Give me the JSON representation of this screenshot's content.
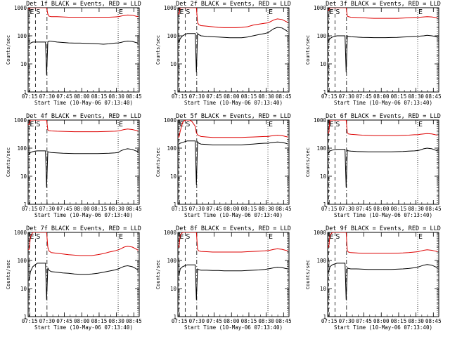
{
  "chart_data": {
    "type": "line",
    "layout": "3x3 grid",
    "y_scale": "log",
    "ylim": [
      1,
      1000
    ],
    "yticks": [
      1,
      10,
      100,
      1000
    ],
    "ytick_labels": [
      "1",
      "10",
      "100",
      "1000"
    ],
    "ylabel": "Counts/sec",
    "xlabel": "Start Time (10-May-06 07:13:40)",
    "xlim_minutes": [
      0,
      96
    ],
    "xticks_minutes": [
      1.33,
      16.33,
      31.33,
      46.33,
      61.33,
      76.33,
      91.33
    ],
    "xtick_labels": [
      "07:15",
      "07:30",
      "07:45",
      "08:00",
      "08:15",
      "08:30",
      "08:45"
    ],
    "markers": [
      {
        "label": "E",
        "minute": 0.8,
        "style": "dashed"
      },
      {
        "label": "S",
        "minute": 6.3,
        "style": "dashed"
      },
      {
        "label": "",
        "minute": 16.3,
        "style": "dashdot"
      },
      {
        "label": "E",
        "minute": 77.8,
        "style": "dotted"
      },
      {
        "label": "",
        "minute": 94.8,
        "style": "dotted"
      }
    ],
    "series_legend": {
      "events": "BLACK = Events",
      "lld": "RED = LLD"
    },
    "series_colors": {
      "events": "#000000",
      "lld": "#dd0000"
    },
    "sample_minutes": [
      0,
      1,
      2,
      4,
      6,
      8,
      10,
      12,
      15,
      16,
      17,
      18,
      20,
      25,
      30,
      35,
      40,
      45,
      50,
      55,
      60,
      65,
      70,
      75,
      78,
      80,
      83,
      86,
      90,
      93,
      95
    ],
    "panels": [
      {
        "title": "Det 1f  BLACK = Events, RED = LLD",
        "events": [
          50,
          50,
          55,
          60,
          60,
          60,
          60,
          60,
          60,
          4,
          60,
          65,
          64,
          60,
          58,
          56,
          55,
          55,
          54,
          53,
          52,
          50,
          52,
          55,
          56,
          58,
          62,
          65,
          63,
          58,
          55
        ],
        "lld": [
          900,
          900,
          1000,
          1000,
          1000,
          1000,
          1000,
          1000,
          1000,
          1000,
          600,
          500,
          480,
          480,
          470,
          460,
          460,
          460,
          460,
          460,
          460,
          460,
          460,
          470,
          480,
          500,
          530,
          550,
          540,
          500,
          480
        ]
      },
      {
        "title": "Det 2f  BLACK = Events, RED = LLD",
        "events": [
          60,
          60,
          80,
          100,
          110,
          120,
          120,
          120,
          120,
          5,
          120,
          110,
          100,
          95,
          92,
          90,
          88,
          85,
          85,
          85,
          90,
          100,
          110,
          120,
          130,
          150,
          180,
          200,
          190,
          160,
          140
        ],
        "lld": [
          600,
          600,
          1000,
          1000,
          1000,
          1000,
          1000,
          1000,
          1000,
          1000,
          300,
          250,
          230,
          220,
          210,
          200,
          195,
          195,
          195,
          200,
          210,
          240,
          260,
          280,
          290,
          320,
          370,
          400,
          380,
          330,
          300
        ]
      },
      {
        "title": "Det 3f  BLACK = Events, RED = LLD",
        "events": [
          70,
          70,
          80,
          90,
          95,
          100,
          100,
          100,
          100,
          5,
          100,
          95,
          92,
          90,
          88,
          87,
          86,
          86,
          86,
          87,
          88,
          90,
          92,
          95,
          96,
          98,
          100,
          105,
          100,
          95,
          90
        ],
        "lld": [
          800,
          800,
          1000,
          1000,
          1000,
          1000,
          1000,
          1000,
          1000,
          1000,
          500,
          480,
          460,
          450,
          440,
          430,
          420,
          420,
          420,
          420,
          420,
          430,
          440,
          450,
          450,
          460,
          470,
          480,
          470,
          450,
          440
        ]
      },
      {
        "title": "Det 4f  BLACK = Events, RED = LLD",
        "events": [
          60,
          60,
          70,
          75,
          78,
          80,
          80,
          80,
          80,
          4,
          75,
          72,
          70,
          68,
          66,
          65,
          64,
          64,
          64,
          64,
          64,
          65,
          66,
          68,
          70,
          80,
          90,
          95,
          90,
          80,
          75
        ],
        "lld": [
          700,
          700,
          1000,
          1000,
          1000,
          1000,
          1000,
          1000,
          1000,
          1000,
          450,
          420,
          410,
          400,
          395,
          390,
          385,
          385,
          385,
          385,
          385,
          390,
          395,
          400,
          410,
          430,
          460,
          480,
          460,
          430,
          410
        ]
      },
      {
        "title": "Det 5f  BLACK = Events, RED = LLD",
        "events": [
          140,
          140,
          150,
          160,
          170,
          180,
          180,
          180,
          180,
          5,
          170,
          150,
          140,
          135,
          130,
          130,
          130,
          130,
          130,
          130,
          135,
          140,
          145,
          150,
          150,
          155,
          160,
          165,
          160,
          150,
          140
        ],
        "lld": [
          250,
          250,
          400,
          800,
          1000,
          1000,
          1000,
          900,
          600,
          350,
          300,
          280,
          260,
          250,
          240,
          240,
          240,
          240,
          240,
          240,
          245,
          250,
          255,
          260,
          260,
          270,
          280,
          290,
          280,
          260,
          250
        ]
      },
      {
        "title": "Det 6f  BLACK = Events, RED = LLD",
        "events": [
          70,
          70,
          80,
          85,
          88,
          90,
          90,
          90,
          90,
          4,
          85,
          80,
          78,
          76,
          75,
          74,
          74,
          74,
          74,
          74,
          75,
          76,
          78,
          80,
          82,
          86,
          95,
          100,
          95,
          85,
          80
        ],
        "lld": [
          350,
          350,
          1000,
          1000,
          1000,
          1000,
          1000,
          1000,
          1000,
          1000,
          350,
          320,
          310,
          300,
          290,
          285,
          280,
          280,
          280,
          280,
          280,
          285,
          290,
          300,
          300,
          310,
          320,
          330,
          320,
          300,
          290
        ]
      },
      {
        "title": "Det 7f  BLACK = Events, RED = LLD",
        "events": [
          20,
          20,
          40,
          60,
          70,
          80,
          80,
          80,
          80,
          4,
          55,
          45,
          40,
          38,
          36,
          35,
          33,
          32,
          32,
          33,
          35,
          38,
          42,
          46,
          50,
          55,
          62,
          65,
          60,
          52,
          45
        ],
        "lld": [
          250,
          250,
          700,
          1000,
          1000,
          1000,
          1000,
          1000,
          1000,
          1000,
          300,
          220,
          190,
          180,
          170,
          160,
          155,
          150,
          150,
          150,
          160,
          175,
          200,
          220,
          240,
          260,
          300,
          320,
          300,
          260,
          230
        ]
      },
      {
        "title": "Det 8f  BLACK = Events, RED = LLD",
        "events": [
          30,
          30,
          50,
          60,
          65,
          70,
          70,
          70,
          70,
          4,
          50,
          47,
          45,
          45,
          44,
          44,
          43,
          43,
          43,
          43,
          44,
          45,
          46,
          48,
          50,
          52,
          55,
          58,
          56,
          52,
          50
        ],
        "lld": [
          300,
          300,
          800,
          1000,
          1000,
          1000,
          1000,
          1000,
          1000,
          1000,
          250,
          220,
          210,
          205,
          200,
          200,
          200,
          200,
          200,
          200,
          205,
          210,
          215,
          220,
          225,
          235,
          250,
          260,
          250,
          230,
          220
        ]
      },
      {
        "title": "Det 9f  BLACK = Events, RED = LLD",
        "events": [
          40,
          40,
          60,
          70,
          75,
          80,
          80,
          80,
          80,
          4,
          55,
          52,
          50,
          50,
          49,
          48,
          48,
          48,
          48,
          48,
          49,
          50,
          52,
          55,
          58,
          62,
          68,
          72,
          68,
          60,
          55
        ],
        "lld": [
          300,
          300,
          800,
          1000,
          1000,
          1000,
          1000,
          1000,
          1000,
          1000,
          220,
          200,
          190,
          185,
          180,
          180,
          180,
          180,
          180,
          180,
          182,
          185,
          190,
          200,
          205,
          215,
          230,
          240,
          230,
          215,
          205
        ]
      }
    ]
  }
}
